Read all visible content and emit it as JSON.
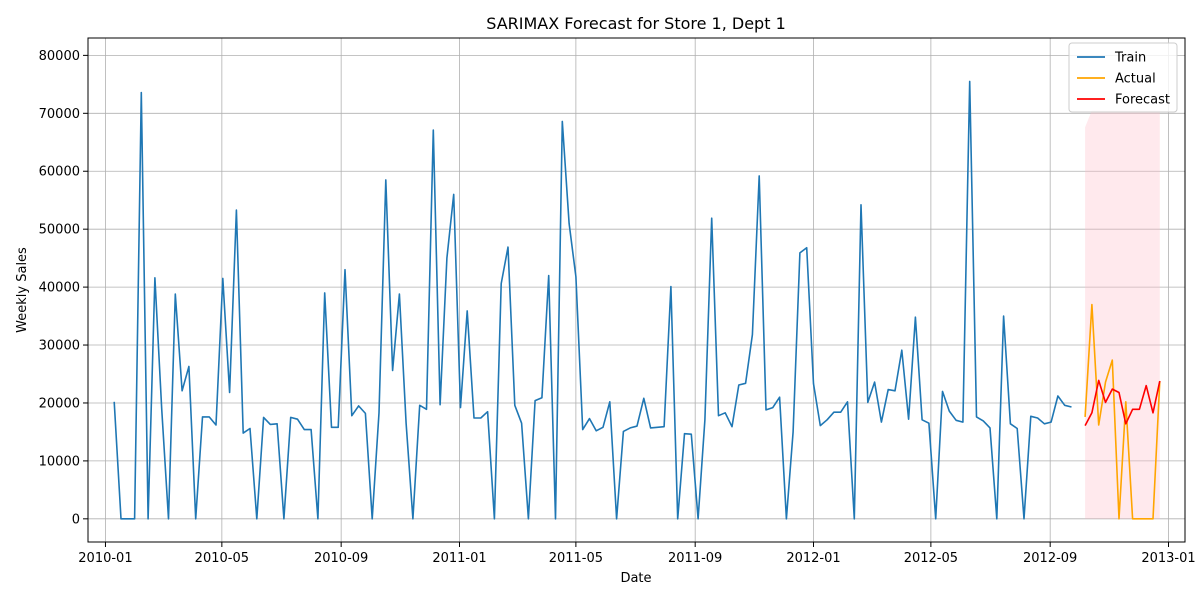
{
  "chart_data": {
    "type": "line",
    "title": "SARIMAX Forecast for Store 1, Dept 1",
    "xlabel": "Date",
    "ylabel": "Weekly Sales",
    "xlim": [
      "2009-12-14",
      "2013-01-18"
    ],
    "ylim": [
      -4000,
      83000
    ],
    "x_ticks": [
      "2010-01-01",
      "2010-05-01",
      "2010-09-01",
      "2011-01-01",
      "2011-05-01",
      "2011-09-01",
      "2012-01-01",
      "2012-05-01",
      "2012-09-01",
      "2013-01-01"
    ],
    "x_tick_labels": [
      "2010-01",
      "2010-05",
      "2010-09",
      "2011-01",
      "2011-05",
      "2011-09",
      "2012-01",
      "2012-05",
      "2012-09",
      "2013-01"
    ],
    "y_ticks": [
      0,
      10000,
      20000,
      30000,
      40000,
      50000,
      60000,
      70000,
      80000
    ],
    "y_tick_labels": [
      "0",
      "10000",
      "20000",
      "30000",
      "40000",
      "50000",
      "60000",
      "70000",
      "80000"
    ],
    "grid": true,
    "legend_position": "top-right",
    "series": [
      {
        "name": "Train",
        "color": "#1f77b4",
        "start_date": "2010-01-10",
        "step_days": 7,
        "values": [
          20200,
          0,
          0,
          0,
          73600,
          0,
          41600,
          19000,
          0,
          38800,
          22100,
          26300,
          0,
          17600,
          17600,
          16200,
          41500,
          21800,
          53300,
          14800,
          15600,
          0,
          17500,
          16300,
          16400,
          0,
          17500,
          17200,
          15400,
          15400,
          0,
          39000,
          15800,
          15800,
          43000,
          17800,
          19500,
          18200,
          0,
          18300,
          58500,
          25600,
          38800,
          16500,
          0,
          19600,
          18900,
          67100,
          19700,
          45000,
          56000,
          19200,
          35900,
          17400,
          17400,
          18500,
          0,
          40600,
          46900,
          19600,
          16500,
          0,
          20400,
          20900,
          42000,
          0,
          68600,
          51000,
          41800,
          15400,
          17300,
          15200,
          15800,
          20200,
          0,
          15100,
          15700,
          16000,
          20800,
          15700,
          15800,
          15900,
          40100,
          0,
          14700,
          14600,
          0,
          17100,
          51900,
          17800,
          18300,
          15900,
          23100,
          23400,
          31800,
          59200,
          18800,
          19200,
          21000,
          0,
          15000,
          45900,
          46800,
          23300,
          16100,
          17100,
          18400,
          18400,
          20200,
          0,
          54200,
          20100,
          23600,
          16700,
          22300,
          22100,
          29100,
          17200,
          34800,
          17100,
          16500,
          0,
          22000,
          18600,
          17000,
          16700,
          75500,
          17600,
          16900,
          15700,
          0,
          35000,
          16400,
          15600,
          0,
          17700,
          17400,
          16400,
          16700,
          21200,
          19600,
          19300
        ]
      },
      {
        "name": "Actual",
        "color": "#ffa500",
        "start_date": "2012-10-07",
        "step_days": 7,
        "values": [
          17600,
          37000,
          16200,
          23600,
          27400,
          0,
          20200,
          0,
          0,
          0,
          0,
          23800
        ]
      },
      {
        "name": "Forecast",
        "color": "#ff0000",
        "start_date": "2012-10-07",
        "step_days": 7,
        "values": [
          16100,
          18300,
          23900,
          20100,
          22400,
          21800,
          16400,
          18900,
          18900,
          23000,
          18300,
          23800
        ]
      }
    ],
    "confidence_band": {
      "color": "#ffc0cb",
      "start_date": "2012-10-07",
      "step_days": 7,
      "lower": [
        0,
        0,
        0,
        0,
        0,
        0,
        0,
        0,
        0,
        0,
        0,
        0
      ],
      "upper": [
        67600,
        70500,
        70500,
        70500,
        70500,
        70500,
        70500,
        70500,
        70500,
        70500,
        70500,
        70500
      ]
    }
  }
}
